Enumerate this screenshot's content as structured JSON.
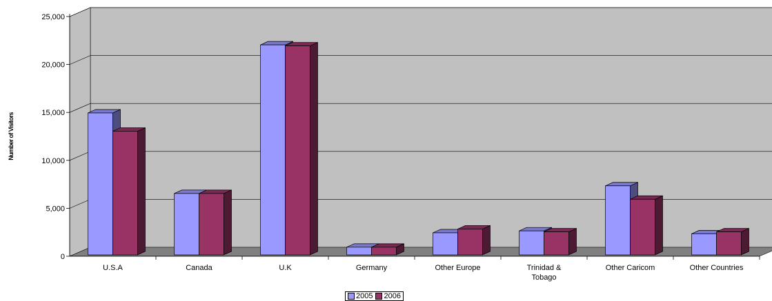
{
  "chart_data": {
    "type": "bar",
    "ylabel": "Number of Visitors",
    "xlabel": "",
    "ylim": [
      0,
      25000
    ],
    "y_ticks": [
      "0",
      "5,000",
      "10,000",
      "15,000",
      "20,000",
      "25,000"
    ],
    "categories": [
      "U.S.A",
      "Canada",
      "U.K",
      "Germany",
      "Other Europe",
      "Trinidad & Tobago",
      "Other Caricom",
      "Other Countries"
    ],
    "series": [
      {
        "name": "2005",
        "color": "#9999ff",
        "values": [
          14800,
          6400,
          21900,
          800,
          2300,
          2500,
          7200,
          2200
        ]
      },
      {
        "name": "2006",
        "color": "#993366",
        "values": [
          12900,
          6400,
          21800,
          800,
          2700,
          2400,
          5800,
          2400
        ]
      }
    ],
    "grid": true,
    "style": "3d-clustered-column",
    "legend_position": "bottom"
  }
}
